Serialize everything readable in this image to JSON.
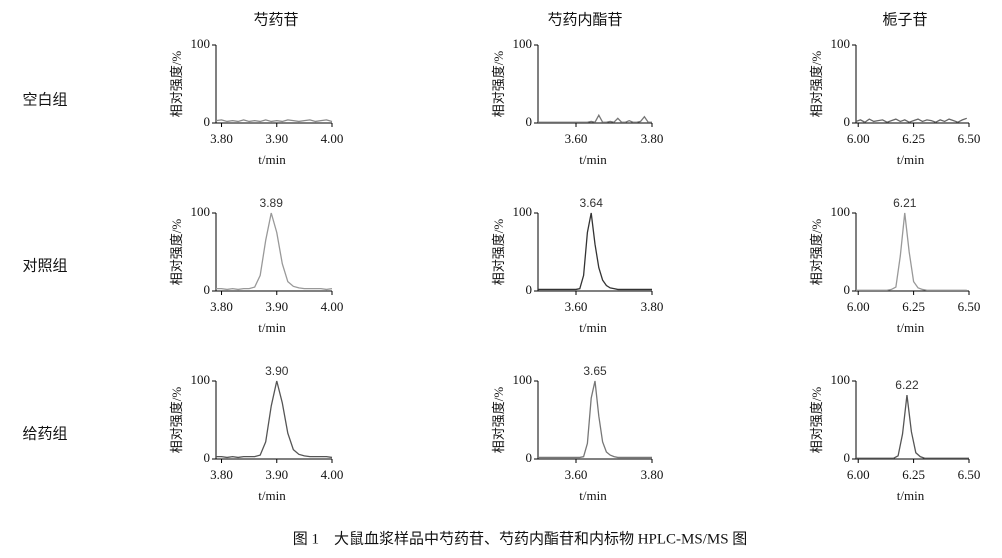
{
  "figure": {
    "columns": [
      "芍药苷",
      "芍药内酯苷",
      "栀子苷"
    ],
    "rows": [
      "空白组",
      "对照组",
      "给药组"
    ],
    "caption": "图 1　大鼠血浆样品中芍药苷、芍药内酯苷和内标物 HPLC-MS/MS 图"
  },
  "chart_data": [
    {
      "type": "line",
      "ylabel": "相对强度/%",
      "xlabel": "t/min",
      "x": [
        3.79,
        3.8,
        3.81,
        3.82,
        3.83,
        3.84,
        3.85,
        3.86,
        3.87,
        3.88,
        3.89,
        3.9,
        3.91,
        3.92,
        3.93,
        3.94,
        3.95,
        3.96,
        3.97,
        3.98,
        3.99,
        4.0
      ],
      "series": [
        {
          "color": "#888888",
          "values": [
            3,
            4,
            2,
            3,
            2,
            4,
            2,
            3,
            2,
            4,
            2,
            3,
            2,
            4,
            3,
            2,
            3,
            4,
            2,
            3,
            4,
            2
          ]
        }
      ],
      "xlim": [
        3.79,
        4.0
      ],
      "ylim": [
        0,
        100
      ],
      "xticks": [
        {
          "value": 3.8,
          "label": "3.80"
        },
        {
          "value": 3.9,
          "label": "3.90"
        },
        {
          "value": 4.0,
          "label": "4.00"
        }
      ],
      "yticks": [
        0,
        100
      ]
    },
    {
      "type": "line",
      "ylabel": "相对强度/%",
      "xlabel": "t/min",
      "x": [
        3.5,
        3.51,
        3.52,
        3.53,
        3.54,
        3.55,
        3.56,
        3.57,
        3.58,
        3.59,
        3.6,
        3.61,
        3.62,
        3.63,
        3.64,
        3.65,
        3.66,
        3.67,
        3.68,
        3.69,
        3.7,
        3.71,
        3.72,
        3.73,
        3.74,
        3.75,
        3.76,
        3.77,
        3.78,
        3.79,
        3.8
      ],
      "series": [
        {
          "color": "#777777",
          "values": [
            1,
            1,
            1,
            1,
            1,
            1,
            1,
            1,
            1,
            1,
            1,
            1,
            1,
            1,
            2,
            1,
            10,
            1,
            1,
            2,
            1,
            6,
            1,
            1,
            3,
            1,
            1,
            2,
            8,
            1,
            1
          ]
        }
      ],
      "xlim": [
        3.5,
        3.8
      ],
      "ylim": [
        0,
        100
      ],
      "xticks": [
        {
          "value": 3.6,
          "label": "3.60"
        },
        {
          "value": 3.8,
          "label": "3.80"
        }
      ],
      "yticks": [
        0,
        100
      ]
    },
    {
      "type": "line",
      "ylabel": "相对强度/%",
      "xlabel": "t/min",
      "x": [
        5.99,
        6.01,
        6.03,
        6.05,
        6.07,
        6.09,
        6.11,
        6.13,
        6.15,
        6.17,
        6.19,
        6.21,
        6.23,
        6.25,
        6.27,
        6.29,
        6.31,
        6.33,
        6.35,
        6.37,
        6.39,
        6.41,
        6.43,
        6.45,
        6.47,
        6.49
      ],
      "series": [
        {
          "color": "#666666",
          "values": [
            2,
            4,
            1,
            5,
            2,
            3,
            4,
            1,
            3,
            5,
            2,
            4,
            1,
            3,
            5,
            2,
            4,
            3,
            1,
            4,
            2,
            5,
            3,
            1,
            4,
            6
          ]
        }
      ],
      "xlim": [
        5.99,
        6.5
      ],
      "ylim": [
        0,
        100
      ],
      "xticks": [
        {
          "value": 6.0,
          "label": "6.00"
        },
        {
          "value": 6.25,
          "label": "6.25"
        },
        {
          "value": 6.5,
          "label": "6.50"
        }
      ],
      "yticks": [
        0,
        100
      ]
    },
    {
      "type": "line",
      "ylabel": "相对强度/%",
      "xlabel": "t/min",
      "x": [
        3.79,
        3.8,
        3.81,
        3.82,
        3.83,
        3.84,
        3.85,
        3.86,
        3.87,
        3.88,
        3.89,
        3.9,
        3.91,
        3.92,
        3.93,
        3.94,
        3.95,
        3.96,
        3.97,
        3.98,
        3.99,
        4.0
      ],
      "series": [
        {
          "color": "#999999",
          "values": [
            3,
            3,
            2,
            3,
            2,
            3,
            3,
            5,
            20,
            65,
            100,
            75,
            35,
            12,
            6,
            4,
            3,
            3,
            3,
            3,
            2,
            3
          ]
        }
      ],
      "annotations": [
        {
          "text": "3.89",
          "x": 3.89,
          "y": 100
        }
      ],
      "xlim": [
        3.79,
        4.0
      ],
      "ylim": [
        0,
        100
      ],
      "xticks": [
        {
          "value": 3.8,
          "label": "3.80"
        },
        {
          "value": 3.9,
          "label": "3.90"
        },
        {
          "value": 4.0,
          "label": "4.00"
        }
      ],
      "yticks": [
        0,
        100
      ]
    },
    {
      "type": "line",
      "ylabel": "相对强度/%",
      "xlabel": "t/min",
      "x": [
        3.5,
        3.51,
        3.52,
        3.53,
        3.54,
        3.55,
        3.56,
        3.57,
        3.58,
        3.59,
        3.6,
        3.61,
        3.62,
        3.63,
        3.64,
        3.65,
        3.66,
        3.67,
        3.68,
        3.69,
        3.7,
        3.71,
        3.72,
        3.73,
        3.74,
        3.75,
        3.76,
        3.77,
        3.78,
        3.79,
        3.8
      ],
      "series": [
        {
          "color": "#333333",
          "values": [
            2,
            2,
            2,
            2,
            2,
            2,
            2,
            2,
            2,
            2,
            2,
            3,
            20,
            75,
            100,
            60,
            30,
            14,
            7,
            4,
            3,
            2,
            2,
            2,
            2,
            2,
            2,
            2,
            2,
            2,
            2
          ]
        }
      ],
      "annotations": [
        {
          "text": "3.64",
          "x": 3.64,
          "y": 100
        }
      ],
      "xlim": [
        3.5,
        3.8
      ],
      "ylim": [
        0,
        100
      ],
      "xticks": [
        {
          "value": 3.6,
          "label": "3.60"
        },
        {
          "value": 3.8,
          "label": "3.80"
        }
      ],
      "yticks": [
        0,
        100
      ]
    },
    {
      "type": "line",
      "ylabel": "相对强度/%",
      "xlabel": "t/min",
      "x": [
        5.99,
        6.01,
        6.03,
        6.05,
        6.07,
        6.09,
        6.11,
        6.13,
        6.15,
        6.17,
        6.19,
        6.21,
        6.23,
        6.25,
        6.27,
        6.29,
        6.31,
        6.33,
        6.35,
        6.37,
        6.39,
        6.41,
        6.43,
        6.45,
        6.47,
        6.49
      ],
      "series": [
        {
          "color": "#999999",
          "values": [
            1,
            1,
            1,
            1,
            1,
            1,
            1,
            1,
            2,
            5,
            45,
            100,
            50,
            12,
            4,
            2,
            1,
            1,
            1,
            1,
            1,
            1,
            1,
            1,
            1,
            1
          ]
        }
      ],
      "annotations": [
        {
          "text": "6.21",
          "x": 6.21,
          "y": 100
        }
      ],
      "xlim": [
        5.99,
        6.5
      ],
      "ylim": [
        0,
        100
      ],
      "xticks": [
        {
          "value": 6.0,
          "label": "6.00"
        },
        {
          "value": 6.25,
          "label": "6.25"
        },
        {
          "value": 6.5,
          "label": "6.50"
        }
      ],
      "yticks": [
        0,
        100
      ]
    },
    {
      "type": "line",
      "ylabel": "相对强度/%",
      "xlabel": "t/min",
      "x": [
        3.79,
        3.8,
        3.81,
        3.82,
        3.83,
        3.84,
        3.85,
        3.86,
        3.87,
        3.88,
        3.89,
        3.9,
        3.91,
        3.92,
        3.93,
        3.94,
        3.95,
        3.96,
        3.97,
        3.98,
        3.99,
        4.0
      ],
      "series": [
        {
          "color": "#555555",
          "values": [
            3,
            3,
            2,
            3,
            2,
            3,
            3,
            3,
            5,
            22,
            68,
            100,
            72,
            33,
            12,
            6,
            4,
            3,
            3,
            3,
            3,
            2
          ]
        }
      ],
      "annotations": [
        {
          "text": "3.90",
          "x": 3.9,
          "y": 100
        }
      ],
      "xlim": [
        3.79,
        4.0
      ],
      "ylim": [
        0,
        100
      ],
      "xticks": [
        {
          "value": 3.8,
          "label": "3.80"
        },
        {
          "value": 3.9,
          "label": "3.90"
        },
        {
          "value": 4.0,
          "label": "4.00"
        }
      ],
      "yticks": [
        0,
        100
      ]
    },
    {
      "type": "line",
      "ylabel": "相对强度/%",
      "xlabel": "t/min",
      "x": [
        3.5,
        3.51,
        3.52,
        3.53,
        3.54,
        3.55,
        3.56,
        3.57,
        3.58,
        3.59,
        3.6,
        3.61,
        3.62,
        3.63,
        3.64,
        3.65,
        3.66,
        3.67,
        3.68,
        3.69,
        3.7,
        3.71,
        3.72,
        3.73,
        3.74,
        3.75,
        3.76,
        3.77,
        3.78,
        3.79,
        3.8
      ],
      "series": [
        {
          "color": "#777777",
          "values": [
            2,
            2,
            2,
            2,
            2,
            2,
            2,
            2,
            2,
            2,
            2,
            2,
            3,
            20,
            78,
            100,
            55,
            22,
            9,
            5,
            3,
            2,
            2,
            2,
            2,
            2,
            2,
            2,
            2,
            2,
            2
          ]
        }
      ],
      "annotations": [
        {
          "text": "3.65",
          "x": 3.65,
          "y": 100
        }
      ],
      "xlim": [
        3.5,
        3.8
      ],
      "ylim": [
        0,
        100
      ],
      "xticks": [
        {
          "value": 3.6,
          "label": "3.60"
        },
        {
          "value": 3.8,
          "label": "3.80"
        }
      ],
      "yticks": [
        0,
        100
      ]
    },
    {
      "type": "line",
      "ylabel": "相对强度/%",
      "xlabel": "t/min",
      "x": [
        5.99,
        6.0,
        6.02,
        6.04,
        6.06,
        6.08,
        6.1,
        6.12,
        6.14,
        6.16,
        6.18,
        6.2,
        6.22,
        6.24,
        6.26,
        6.28,
        6.3,
        6.32,
        6.34,
        6.36,
        6.38,
        6.4,
        6.42,
        6.44,
        6.46,
        6.48,
        6.5
      ],
      "series": [
        {
          "color": "#555555",
          "values": [
            1,
            1,
            1,
            1,
            1,
            1,
            1,
            1,
            1,
            1,
            4,
            32,
            82,
            35,
            8,
            3,
            1,
            1,
            1,
            1,
            1,
            1,
            1,
            1,
            1,
            1,
            1
          ]
        }
      ],
      "annotations": [
        {
          "text": "6.22",
          "x": 6.22,
          "y": 82
        }
      ],
      "xlim": [
        5.99,
        6.5
      ],
      "ylim": [
        0,
        100
      ],
      "xticks": [
        {
          "value": 6.0,
          "label": "6.00"
        },
        {
          "value": 6.25,
          "label": "6.25"
        },
        {
          "value": 6.5,
          "label": "6.50"
        }
      ],
      "yticks": [
        0,
        100
      ]
    }
  ]
}
